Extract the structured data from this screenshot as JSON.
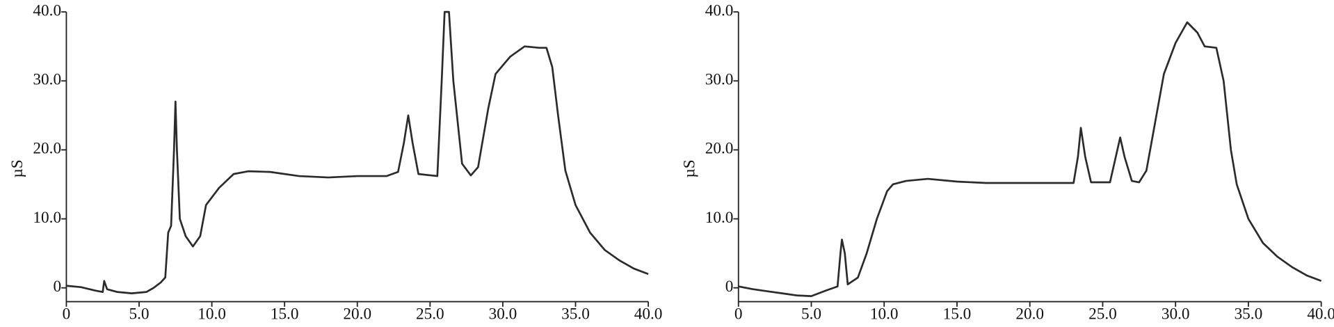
{
  "chart_data": [
    {
      "type": "line",
      "ylabel": "µS",
      "color": "#2b2b2b",
      "x": [
        0,
        1,
        2,
        2.5,
        2.6,
        2.8,
        3.5,
        4.5,
        5.5,
        6.0,
        6.5,
        6.8,
        7.0,
        7.2,
        7.4,
        7.5,
        7.6,
        7.8,
        8.2,
        8.7,
        9.2,
        9.6,
        10.5,
        11.5,
        12.5,
        14,
        16,
        18,
        20,
        22,
        22.8,
        23.2,
        23.5,
        23.8,
        24.2,
        25.5,
        25.8,
        26.0,
        26.3,
        26.6,
        27.2,
        27.8,
        28.3,
        29,
        29.5,
        30.5,
        31.5,
        32.5,
        33,
        33.4,
        33.8,
        34.3,
        35,
        36,
        37,
        38,
        39,
        40
      ],
      "values": [
        0.3,
        0.1,
        -0.4,
        -0.6,
        1.0,
        -0.2,
        -0.6,
        -0.8,
        -0.6,
        0,
        0.8,
        1.5,
        8,
        9,
        20,
        27,
        20,
        10,
        7.5,
        6,
        7.5,
        12,
        14.5,
        16.5,
        16.9,
        16.8,
        16.2,
        16,
        16.2,
        16.2,
        16.8,
        21,
        25,
        21,
        16.5,
        16.2,
        30,
        40,
        40,
        30,
        18,
        16.3,
        17.5,
        26,
        31,
        33.5,
        35,
        34.8,
        34.8,
        32,
        25,
        17,
        12,
        8,
        5.5,
        4,
        2.8,
        2.0
      ],
      "xlim": [
        0,
        40
      ],
      "ylim": [
        -2,
        40
      ],
      "xticks": [
        0,
        {
          "value": 5,
          "label": "5.0"
        },
        {
          "value": 10,
          "label": "10.0"
        },
        {
          "value": 15,
          "label": "15.0"
        },
        {
          "value": 20,
          "label": "20.0"
        },
        {
          "value": 25,
          "label": "25.0"
        },
        {
          "value": 30,
          "label": "30.0"
        },
        {
          "value": 35,
          "label": "35.0"
        },
        {
          "value": 40,
          "label": "40.0"
        }
      ],
      "yticks": [
        0,
        {
          "value": 10,
          "label": "10.0"
        },
        {
          "value": 20,
          "label": "20.0"
        },
        {
          "value": 30,
          "label": "30.0"
        },
        {
          "value": 40,
          "label": "40.0"
        }
      ]
    },
    {
      "type": "line",
      "ylabel": "µS",
      "color": "#2b2b2b",
      "x": [
        0,
        1,
        2,
        3,
        4,
        5,
        5.5,
        6,
        6.8,
        7.0,
        7.1,
        7.3,
        7.5,
        8.2,
        8.8,
        9.5,
        10.2,
        10.6,
        11.5,
        13,
        15,
        17,
        20,
        23,
        23.3,
        23.5,
        23.8,
        24.2,
        25.5,
        25.9,
        26.2,
        26.5,
        27,
        27.5,
        28,
        28.6,
        29.2,
        30,
        30.8,
        31.5,
        32,
        32.8,
        33.3,
        33.8,
        34.2,
        35,
        36,
        37,
        38,
        39,
        40
      ],
      "values": [
        0.2,
        -0.2,
        -0.5,
        -0.8,
        -1.1,
        -1.2,
        -0.8,
        -0.4,
        0.2,
        5,
        7,
        5,
        0.5,
        1.5,
        5,
        10,
        14,
        15,
        15.5,
        15.8,
        15.4,
        15.2,
        15.2,
        15.2,
        19,
        23.2,
        19,
        15.3,
        15.3,
        19,
        21.8,
        19,
        15.5,
        15.3,
        17,
        24,
        31,
        35.5,
        38.5,
        37,
        35,
        34.8,
        30,
        20,
        15,
        10,
        6.5,
        4.5,
        3,
        1.8,
        1.0
      ],
      "xlim": [
        0,
        40
      ],
      "ylim": [
        -2,
        40
      ],
      "xticks": [
        0,
        {
          "value": 5,
          "label": "5.0"
        },
        {
          "value": 10,
          "label": "10.0"
        },
        {
          "value": 15,
          "label": "15.0"
        },
        {
          "value": 20,
          "label": "20.0"
        },
        {
          "value": 25,
          "label": "25.0"
        },
        {
          "value": 30,
          "label": "30.0"
        },
        {
          "value": 35,
          "label": "35.0"
        },
        {
          "value": 40,
          "label": "40.0"
        }
      ],
      "yticks": [
        0,
        {
          "value": 10,
          "label": "10.0"
        },
        {
          "value": 20,
          "label": "20.0"
        },
        {
          "value": 30,
          "label": "30.0"
        },
        {
          "value": 40,
          "label": "40.0"
        }
      ]
    }
  ]
}
